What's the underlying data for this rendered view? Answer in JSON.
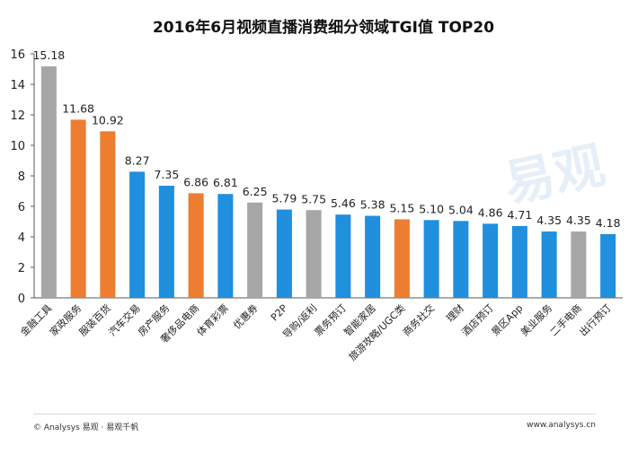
{
  "chart_data": {
    "type": "bar",
    "title": "2016年6月视频直播消费细分领域TGI值  TOP20",
    "categories": [
      "金融工具",
      "家政服务",
      "服装百货",
      "汽车交易",
      "房产服务",
      "奢侈品电商",
      "体育彩票",
      "优惠券",
      "P2P",
      "导购/返利",
      "票务预订",
      "智能家居",
      "旅游攻略/UGC类",
      "商务社交",
      "理财",
      "酒店预订",
      "景区App",
      "美业服务",
      "二手电商",
      "出行预订"
    ],
    "values": [
      15.18,
      11.68,
      10.92,
      8.27,
      7.35,
      6.86,
      6.81,
      6.25,
      5.79,
      5.75,
      5.46,
      5.38,
      5.15,
      5.1,
      5.04,
      4.86,
      4.71,
      4.35,
      4.35,
      4.18
    ],
    "value_labels": [
      "15.18",
      "11.68",
      "10.92",
      "8.27",
      "7.35",
      "6.86",
      "6.81",
      "6.25",
      "5.79",
      "5.75",
      "5.46",
      "5.38",
      "5.15",
      "5.10",
      "5.04",
      "4.86",
      "4.71",
      "4.35",
      "4.35",
      "4.18"
    ],
    "bar_colors": [
      "#a6a6a6",
      "#ed7d31",
      "#ed7d31",
      "#1f8fde",
      "#1f8fde",
      "#ed7d31",
      "#1f8fde",
      "#a6a6a6",
      "#1f8fde",
      "#a6a6a6",
      "#1f8fde",
      "#1f8fde",
      "#ed7d31",
      "#1f8fde",
      "#1f8fde",
      "#1f8fde",
      "#1f8fde",
      "#1f8fde",
      "#a6a6a6",
      "#1f8fde"
    ],
    "yticks": [
      "0",
      "2",
      "4",
      "6",
      "8",
      "10",
      "12",
      "14",
      "16"
    ],
    "ylim": [
      0,
      16
    ],
    "grid": false,
    "xlabel": "",
    "ylabel": ""
  },
  "footer": {
    "left": "© Analysys 易观 · 易观千帆",
    "right": "www.analysys.cn"
  },
  "watermark": "易观",
  "colors": {
    "blue": "#1f8fde",
    "orange": "#ed7d31",
    "gray": "#a6a6a6"
  }
}
